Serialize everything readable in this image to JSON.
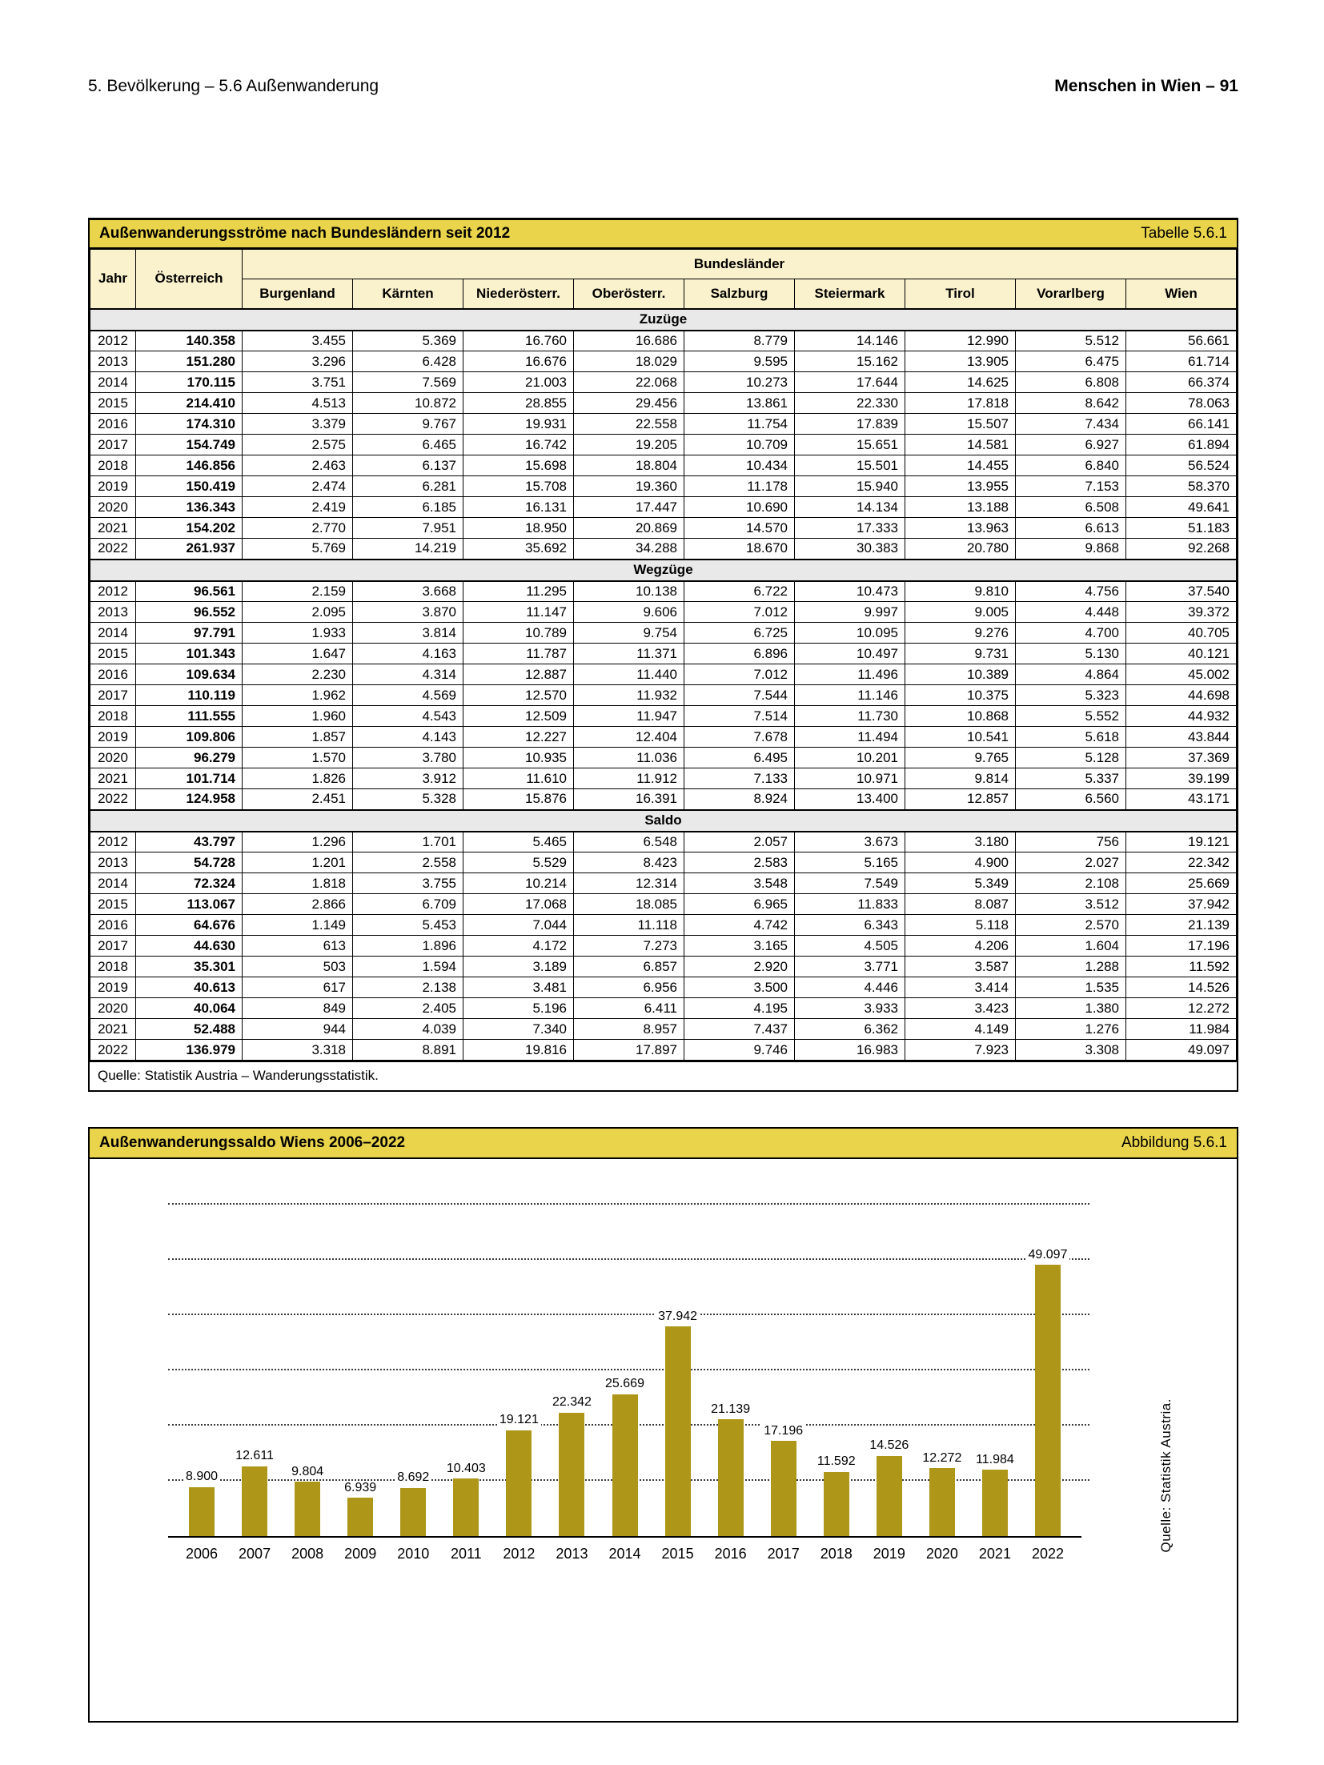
{
  "page_header": {
    "left": "5. Bevölkerung – 5.6 Außenwanderung",
    "right": "Menschen in Wien – 91"
  },
  "table": {
    "title": "Außenwanderungsströme nach Bundesländern seit 2012",
    "label": "Tabelle 5.6.1",
    "col_jahr": "Jahr",
    "col_oesterreich": "Österreich",
    "col_group": "Bundesländer",
    "columns": [
      "Burgenland",
      "Kärnten",
      "Niederösterr.",
      "Oberösterr.",
      "Salzburg",
      "Steiermark",
      "Tirol",
      "Vorarlberg",
      "Wien"
    ],
    "sections": [
      {
        "name": "Zuzüge",
        "rows": [
          [
            "2012",
            "140.358",
            "3.455",
            "5.369",
            "16.760",
            "16.686",
            "8.779",
            "14.146",
            "12.990",
            "5.512",
            "56.661"
          ],
          [
            "2013",
            "151.280",
            "3.296",
            "6.428",
            "16.676",
            "18.029",
            "9.595",
            "15.162",
            "13.905",
            "6.475",
            "61.714"
          ],
          [
            "2014",
            "170.115",
            "3.751",
            "7.569",
            "21.003",
            "22.068",
            "10.273",
            "17.644",
            "14.625",
            "6.808",
            "66.374"
          ],
          [
            "2015",
            "214.410",
            "4.513",
            "10.872",
            "28.855",
            "29.456",
            "13.861",
            "22.330",
            "17.818",
            "8.642",
            "78.063"
          ],
          [
            "2016",
            "174.310",
            "3.379",
            "9.767",
            "19.931",
            "22.558",
            "11.754",
            "17.839",
            "15.507",
            "7.434",
            "66.141"
          ],
          [
            "2017",
            "154.749",
            "2.575",
            "6.465",
            "16.742",
            "19.205",
            "10.709",
            "15.651",
            "14.581",
            "6.927",
            "61.894"
          ],
          [
            "2018",
            "146.856",
            "2.463",
            "6.137",
            "15.698",
            "18.804",
            "10.434",
            "15.501",
            "14.455",
            "6.840",
            "56.524"
          ],
          [
            "2019",
            "150.419",
            "2.474",
            "6.281",
            "15.708",
            "19.360",
            "11.178",
            "15.940",
            "13.955",
            "7.153",
            "58.370"
          ],
          [
            "2020",
            "136.343",
            "2.419",
            "6.185",
            "16.131",
            "17.447",
            "10.690",
            "14.134",
            "13.188",
            "6.508",
            "49.641"
          ],
          [
            "2021",
            "154.202",
            "2.770",
            "7.951",
            "18.950",
            "20.869",
            "14.570",
            "17.333",
            "13.963",
            "6.613",
            "51.183"
          ],
          [
            "2022",
            "261.937",
            "5.769",
            "14.219",
            "35.692",
            "34.288",
            "18.670",
            "30.383",
            "20.780",
            "9.868",
            "92.268"
          ]
        ]
      },
      {
        "name": "Wegzüge",
        "rows": [
          [
            "2012",
            "96.561",
            "2.159",
            "3.668",
            "11.295",
            "10.138",
            "6.722",
            "10.473",
            "9.810",
            "4.756",
            "37.540"
          ],
          [
            "2013",
            "96.552",
            "2.095",
            "3.870",
            "11.147",
            "9.606",
            "7.012",
            "9.997",
            "9.005",
            "4.448",
            "39.372"
          ],
          [
            "2014",
            "97.791",
            "1.933",
            "3.814",
            "10.789",
            "9.754",
            "6.725",
            "10.095",
            "9.276",
            "4.700",
            "40.705"
          ],
          [
            "2015",
            "101.343",
            "1.647",
            "4.163",
            "11.787",
            "11.371",
            "6.896",
            "10.497",
            "9.731",
            "5.130",
            "40.121"
          ],
          [
            "2016",
            "109.634",
            "2.230",
            "4.314",
            "12.887",
            "11.440",
            "7.012",
            "11.496",
            "10.389",
            "4.864",
            "45.002"
          ],
          [
            "2017",
            "110.119",
            "1.962",
            "4.569",
            "12.570",
            "11.932",
            "7.544",
            "11.146",
            "10.375",
            "5.323",
            "44.698"
          ],
          [
            "2018",
            "111.555",
            "1.960",
            "4.543",
            "12.509",
            "11.947",
            "7.514",
            "11.730",
            "10.868",
            "5.552",
            "44.932"
          ],
          [
            "2019",
            "109.806",
            "1.857",
            "4.143",
            "12.227",
            "12.404",
            "7.678",
            "11.494",
            "10.541",
            "5.618",
            "43.844"
          ],
          [
            "2020",
            "96.279",
            "1.570",
            "3.780",
            "10.935",
            "11.036",
            "6.495",
            "10.201",
            "9.765",
            "5.128",
            "37.369"
          ],
          [
            "2021",
            "101.714",
            "1.826",
            "3.912",
            "11.610",
            "11.912",
            "7.133",
            "10.971",
            "9.814",
            "5.337",
            "39.199"
          ],
          [
            "2022",
            "124.958",
            "2.451",
            "5.328",
            "15.876",
            "16.391",
            "8.924",
            "13.400",
            "12.857",
            "6.560",
            "43.171"
          ]
        ]
      },
      {
        "name": "Saldo",
        "rows": [
          [
            "2012",
            "43.797",
            "1.296",
            "1.701",
            "5.465",
            "6.548",
            "2.057",
            "3.673",
            "3.180",
            "756",
            "19.121"
          ],
          [
            "2013",
            "54.728",
            "1.201",
            "2.558",
            "5.529",
            "8.423",
            "2.583",
            "5.165",
            "4.900",
            "2.027",
            "22.342"
          ],
          [
            "2014",
            "72.324",
            "1.818",
            "3.755",
            "10.214",
            "12.314",
            "3.548",
            "7.549",
            "5.349",
            "2.108",
            "25.669"
          ],
          [
            "2015",
            "113.067",
            "2.866",
            "6.709",
            "17.068",
            "18.085",
            "6.965",
            "11.833",
            "8.087",
            "3.512",
            "37.942"
          ],
          [
            "2016",
            "64.676",
            "1.149",
            "5.453",
            "7.044",
            "11.118",
            "4.742",
            "6.343",
            "5.118",
            "2.570",
            "21.139"
          ],
          [
            "2017",
            "44.630",
            "613",
            "1.896",
            "4.172",
            "7.273",
            "3.165",
            "4.505",
            "4.206",
            "1.604",
            "17.196"
          ],
          [
            "2018",
            "35.301",
            "503",
            "1.594",
            "3.189",
            "6.857",
            "2.920",
            "3.771",
            "3.587",
            "1.288",
            "11.592"
          ],
          [
            "2019",
            "40.613",
            "617",
            "2.138",
            "3.481",
            "6.956",
            "3.500",
            "4.446",
            "3.414",
            "1.535",
            "14.526"
          ],
          [
            "2020",
            "40.064",
            "849",
            "2.405",
            "5.196",
            "6.411",
            "4.195",
            "3.933",
            "3.423",
            "1.380",
            "12.272"
          ],
          [
            "2021",
            "52.488",
            "944",
            "4.039",
            "7.340",
            "8.957",
            "7.437",
            "6.362",
            "4.149",
            "1.276",
            "11.984"
          ],
          [
            "2022",
            "136.979",
            "3.318",
            "8.891",
            "19.816",
            "17.897",
            "9.746",
            "16.983",
            "7.923",
            "3.308",
            "49.097"
          ]
        ]
      }
    ],
    "source": "Quelle: Statistik Austria – Wanderungsstatistik."
  },
  "chart": {
    "title": "Außenwanderungssaldo Wiens 2006–2022",
    "label": "Abbildung 5.6.1",
    "source_vertical": "Quelle: Statistik Austria."
  },
  "chart_data": {
    "type": "bar",
    "title": "Außenwanderungssaldo Wiens 2006–2022",
    "categories": [
      "2006",
      "2007",
      "2008",
      "2009",
      "2010",
      "2011",
      "2012",
      "2013",
      "2014",
      "2015",
      "2016",
      "2017",
      "2018",
      "2019",
      "2020",
      "2021",
      "2022"
    ],
    "values": [
      8900,
      12611,
      9804,
      6939,
      8692,
      10403,
      19121,
      22342,
      25669,
      37942,
      21139,
      17196,
      11592,
      14526,
      12272,
      11984,
      49097
    ],
    "value_labels": [
      "8.900",
      "12.611",
      "9.804",
      "6.939",
      "8.692",
      "10.403",
      "19.121",
      "22.342",
      "25.669",
      "37.942",
      "21.139",
      "17.196",
      "11.592",
      "14.526",
      "12.272",
      "11.984",
      "49.097"
    ],
    "xlabel": "",
    "ylabel": "",
    "ylim": [
      0,
      60000
    ],
    "gridlines": [
      10000,
      20000,
      30000,
      40000,
      50000,
      60000
    ],
    "grid": "dotted-horizontal",
    "legend": "none",
    "bar_color": "#AE9618"
  },
  "colors": {
    "accent_yellow": "#E9D44B",
    "header_cream": "#FAF1CD",
    "section_gray": "#E9E9E9",
    "bar_gold": "#AE9618"
  }
}
